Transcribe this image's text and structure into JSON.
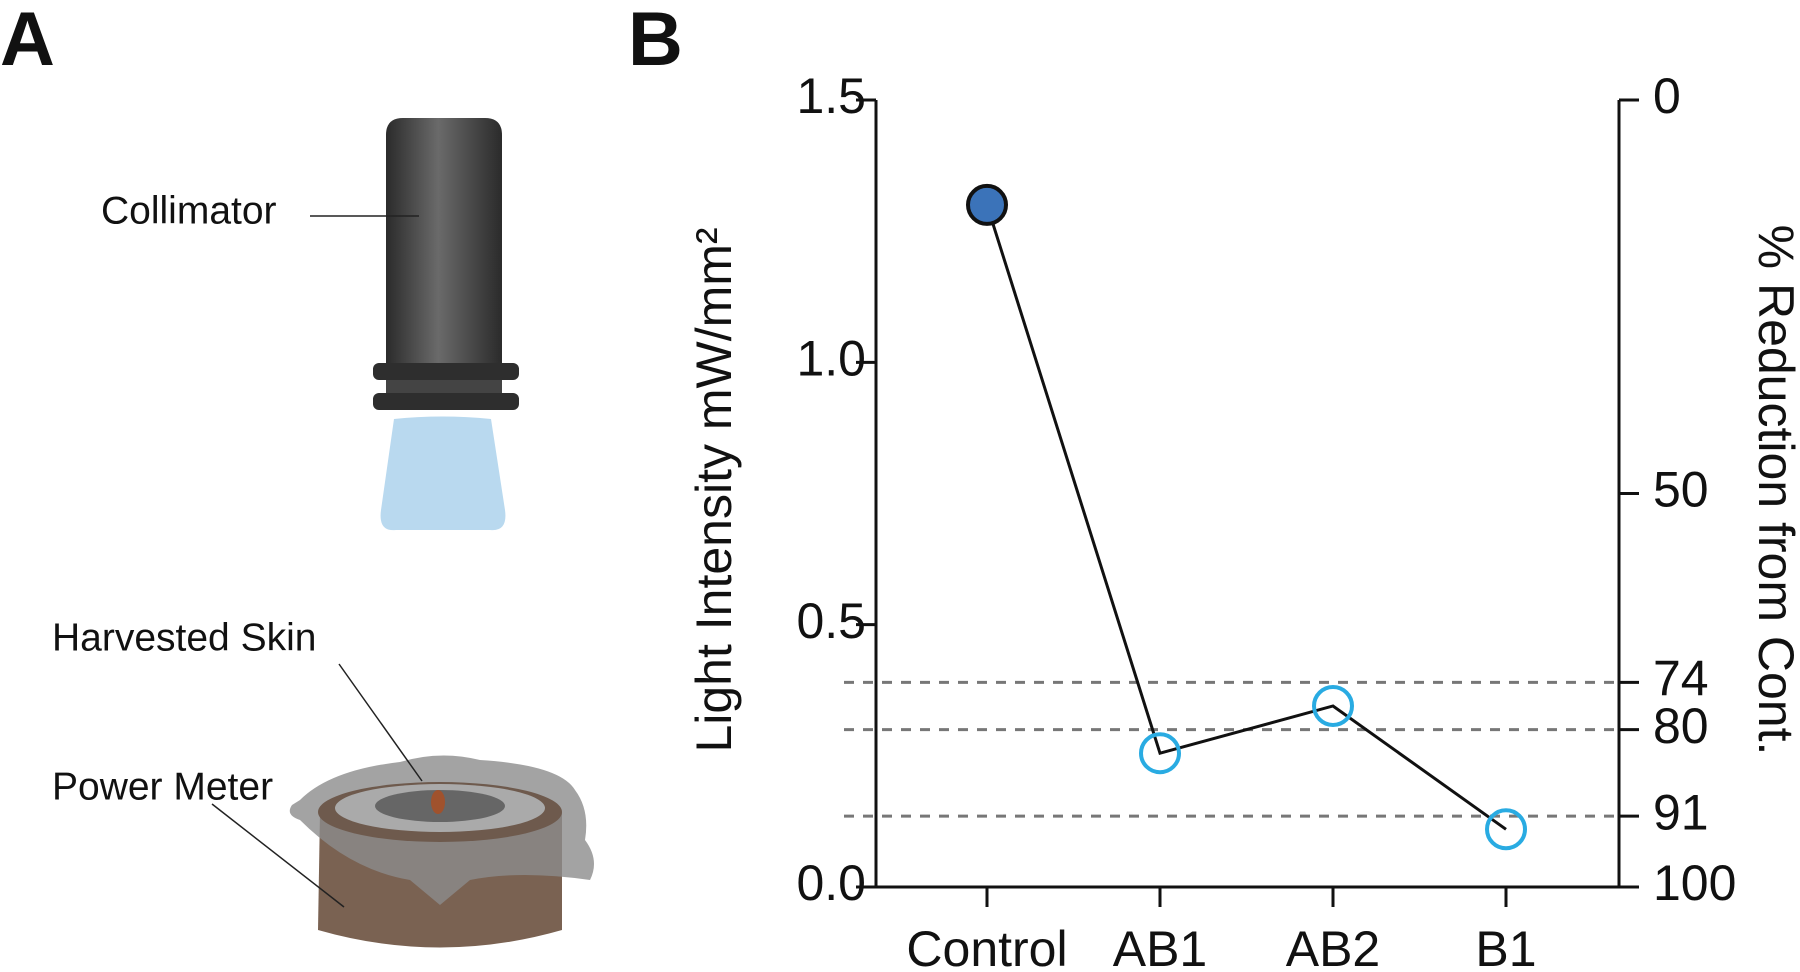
{
  "panel_labels": [
    "A",
    "B"
  ],
  "diagram": {
    "labels": [
      "Collimator",
      "Harvested Skin",
      "Power Meter"
    ]
  },
  "chart_data": {
    "type": "line",
    "categories": [
      "Control",
      "AB1",
      "AB2",
      "B1"
    ],
    "values": [
      1.3,
      0.255,
      0.345,
      0.11
    ],
    "line_color": "#111111",
    "point_fill": [
      "#3b73b9",
      "none",
      "none",
      "none"
    ],
    "point_edge": [
      "#111111",
      "#29abe2",
      "#29abe2",
      "#29abe2"
    ],
    "ylabel": "Light Intensity mW/mm²",
    "y2label": "% Reduction from Cont.",
    "ylim": [
      0,
      1.5
    ],
    "yticks": [
      {
        "value": 0,
        "label": "0.0"
      },
      0.5,
      {
        "value": 1,
        "label": "1.0"
      },
      1.5
    ],
    "y2lim": [
      100,
      0
    ],
    "y2ticks": [
      0,
      50,
      74,
      80,
      91,
      100
    ],
    "y2_reference_lines": [
      74,
      80,
      91
    ]
  }
}
